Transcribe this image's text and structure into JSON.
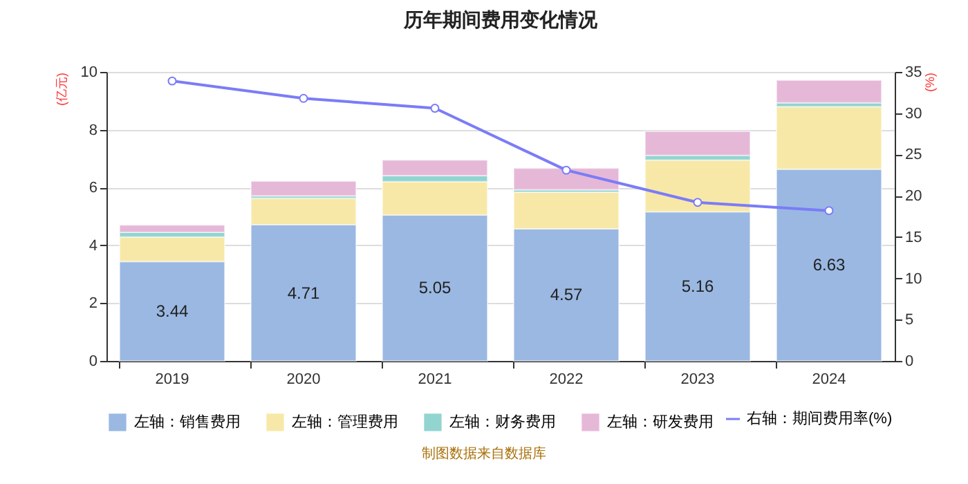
{
  "chart_data": {
    "type": "bar",
    "title": "历年期间费用变化情况",
    "ylabel": "(亿元)",
    "y2label": "(%)",
    "categories": [
      "2019",
      "2020",
      "2021",
      "2022",
      "2023",
      "2024"
    ],
    "stacked": true,
    "series": [
      {
        "name": "左轴：销售费用",
        "color": "#9ab8e2",
        "values": [
          3.44,
          4.71,
          5.05,
          4.57,
          5.16,
          6.63
        ],
        "value_labels": [
          "3.44",
          "4.71",
          "5.05",
          "4.57",
          "5.16",
          "6.63"
        ]
      },
      {
        "name": "左轴：管理费用",
        "color": "#f8e8a8",
        "values": [
          0.85,
          0.92,
          1.15,
          1.27,
          1.79,
          2.17
        ]
      },
      {
        "name": "左轴：财务费用",
        "color": "#92d4d0",
        "values": [
          0.16,
          0.08,
          0.21,
          0.08,
          0.16,
          0.13
        ]
      },
      {
        "name": "左轴：研发费用",
        "color": "#e6b8d8",
        "values": [
          0.25,
          0.51,
          0.54,
          0.75,
          0.83,
          0.78
        ]
      },
      {
        "name": "右轴：期间费用率(%)",
        "type": "line",
        "axis": "y2",
        "color": "#7b7cf7",
        "marker": "circle",
        "values": [
          33.9,
          31.8,
          30.6,
          23.1,
          19.2,
          18.2
        ]
      }
    ],
    "ylim": [
      0,
      10
    ],
    "yticks": [
      0,
      2,
      4,
      6,
      8,
      10
    ],
    "y2lim": [
      0,
      35
    ],
    "y2ticks": [
      0,
      5,
      10,
      15,
      20,
      25,
      30,
      35
    ],
    "grid": "y",
    "legend": "bottom",
    "annotations": [
      "制图数据来自数据库"
    ]
  }
}
